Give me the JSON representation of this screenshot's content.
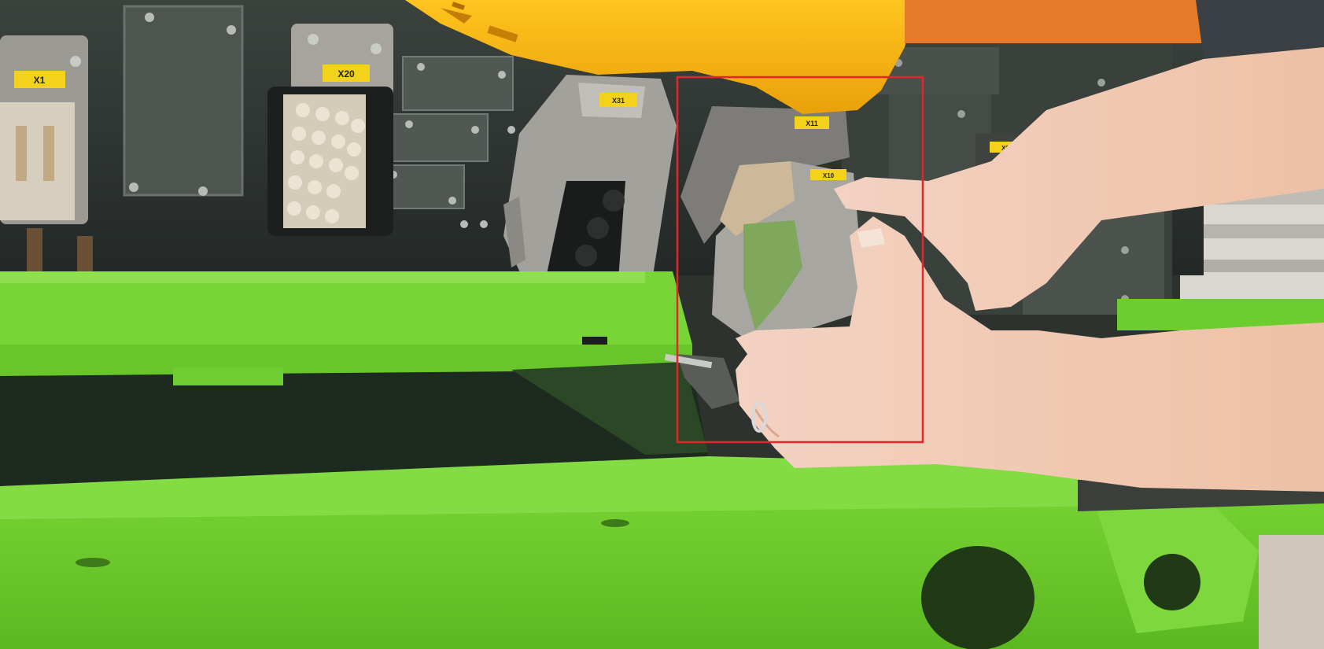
{
  "photo": {
    "labels": {
      "x1": "X1",
      "x20": "X20",
      "x31": "X31",
      "x11": "X11",
      "x10": "X10",
      "x9": "X9"
    },
    "highlight": {
      "color": "#e3262b"
    },
    "colors": {
      "machine_green": "#6ed12a",
      "panel_dark": "#2e3431",
      "helmet_yellow": "#f5b312",
      "label_yellow": "#f2d21a",
      "connector_gray": "#9b9993",
      "skin": "#f2d3bf"
    }
  }
}
